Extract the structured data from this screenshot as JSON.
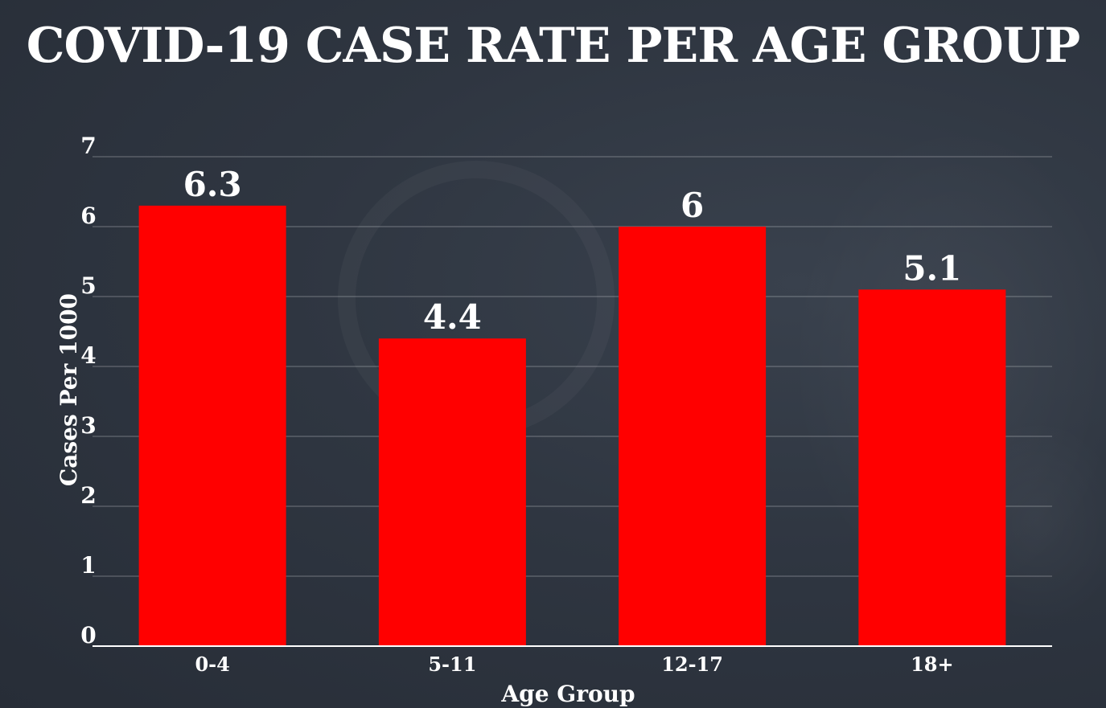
{
  "chart_data": {
    "type": "bar",
    "title": "COVID-19 CASE RATE PER AGE GROUP",
    "xlabel": "Age Group",
    "ylabel": "Cases Per 1000",
    "categories": [
      "0-4",
      "5-11",
      "12-17",
      "18+"
    ],
    "values": [
      6.3,
      4.4,
      6,
      5.1
    ],
    "value_labels": [
      "6.3",
      "4.4",
      "6",
      "5.1"
    ],
    "ylim": [
      0,
      7
    ],
    "yticks": [
      0,
      1,
      2,
      3,
      4,
      5,
      6,
      7
    ],
    "grid": true,
    "legend": "none",
    "colors": {
      "bar": "#ff0000",
      "background": "#2b323d",
      "text": "#ffffff"
    }
  }
}
